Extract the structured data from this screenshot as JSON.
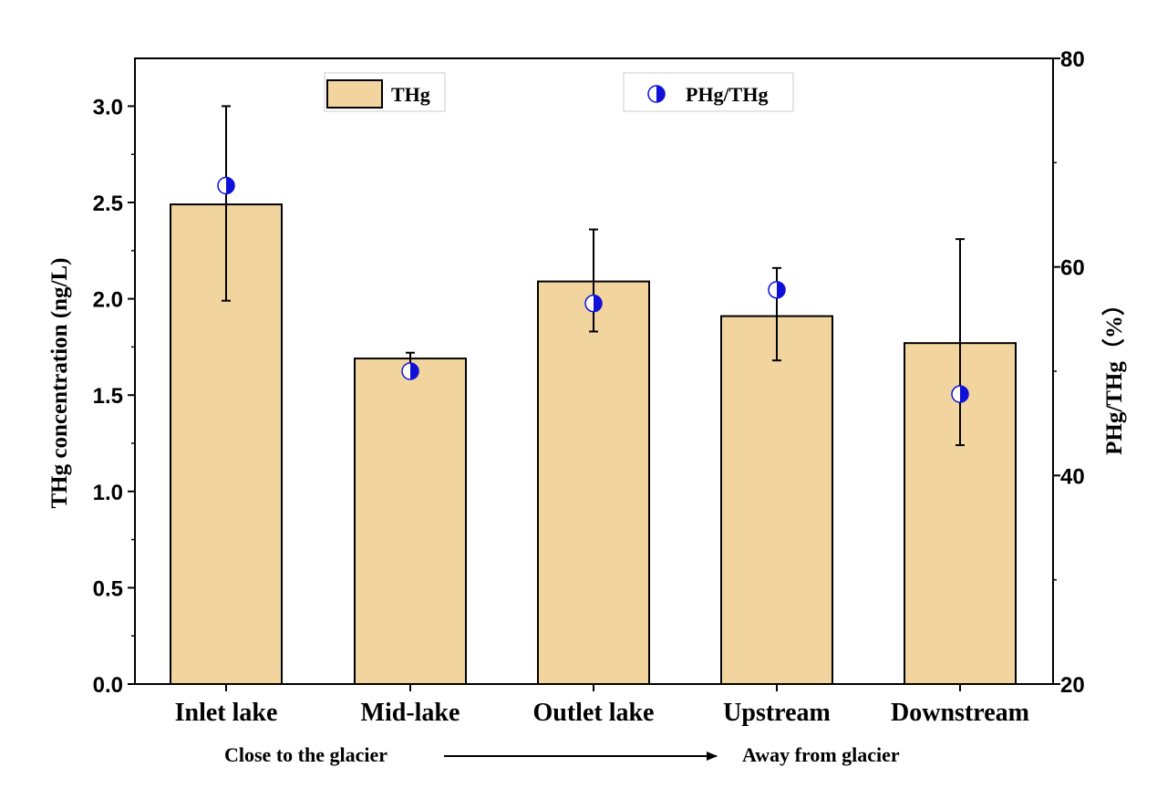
{
  "chart_data": {
    "type": "bar",
    "categories": [
      "Inlet lake",
      "Mid-lake",
      "Outlet lake",
      "Upstream",
      "Downstream"
    ],
    "series": [
      {
        "name": "THg",
        "axis": "left",
        "kind": "bar",
        "values": [
          2.49,
          1.69,
          2.09,
          1.91,
          1.77
        ],
        "error": [
          [
            1.99,
            3.0
          ],
          [
            1.62,
            1.72
          ],
          [
            1.83,
            2.36
          ],
          [
            1.68,
            2.16
          ],
          [
            1.24,
            2.31
          ]
        ]
      },
      {
        "name": "PHg/THg",
        "axis": "right",
        "kind": "scatter",
        "values": [
          67.8,
          50.0,
          56.5,
          57.8,
          47.8
        ]
      }
    ],
    "ylabel": "THg concentration (ng/L)",
    "y2label": "PHg/THg（%）",
    "ylim": [
      0,
      3.25
    ],
    "yticks": [
      "0.0",
      "0.5",
      "1.0",
      "1.5",
      "2.0",
      "2.5",
      "3.0"
    ],
    "y2lim": [
      20,
      80
    ],
    "y2ticks": [
      "20",
      "40",
      "60",
      "80"
    ],
    "legend": [
      "THg",
      "PHg/THg"
    ],
    "legend_position": "top",
    "colors": {
      "bar": "#f2d59e",
      "marker": "#1010d8",
      "axis": "#000000"
    },
    "annotation": {
      "left": "Close to the glacier",
      "right": "Away from glacier"
    }
  }
}
